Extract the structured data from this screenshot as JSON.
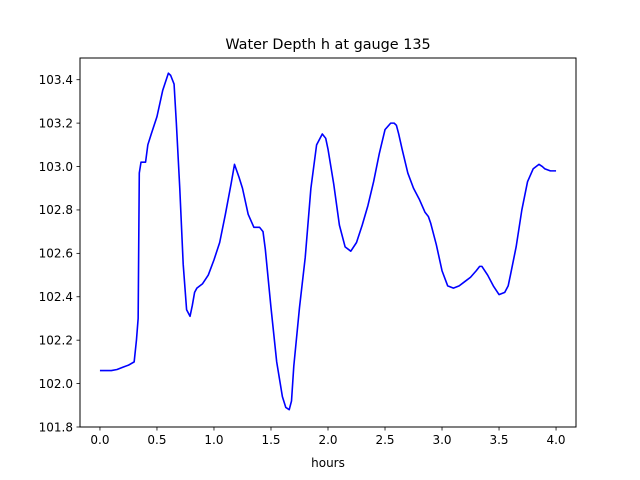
{
  "chart_data": {
    "type": "line",
    "title": "Water Depth h at gauge 135",
    "xlabel": "hours",
    "ylabel": "",
    "xlim": [
      -0.175,
      4.175
    ],
    "ylim": [
      101.8,
      103.5
    ],
    "x_ticks": [
      0.0,
      0.5,
      1.0,
      1.5,
      2.0,
      2.5,
      3.0,
      3.5,
      4.0
    ],
    "x_tick_labels": [
      "0.0",
      "0.5",
      "1.0",
      "1.5",
      "2.0",
      "2.5",
      "3.0",
      "3.5",
      "4.0"
    ],
    "y_ticks": [
      101.8,
      102.0,
      102.2,
      102.4,
      102.6,
      102.8,
      103.0,
      103.2,
      103.4
    ],
    "y_tick_labels": [
      "101.8",
      "102.0",
      "102.2",
      "102.4",
      "102.6",
      "102.8",
      "103.0",
      "103.2",
      "103.4"
    ],
    "grid": false,
    "colors": {
      "line": "#0000ff",
      "axes": "#000000"
    },
    "series": [
      {
        "x": [
          0.0,
          0.1,
          0.15,
          0.2,
          0.25,
          0.3,
          0.32,
          0.335,
          0.345,
          0.36,
          0.38,
          0.4,
          0.42,
          0.45,
          0.5,
          0.55,
          0.6,
          0.62,
          0.65,
          0.67,
          0.7,
          0.73,
          0.76,
          0.79,
          0.81,
          0.83,
          0.85,
          0.9,
          0.95,
          1.0,
          1.05,
          1.1,
          1.15,
          1.18,
          1.2,
          1.22,
          1.25,
          1.3,
          1.35,
          1.4,
          1.43,
          1.45,
          1.5,
          1.55,
          1.6,
          1.63,
          1.66,
          1.68,
          1.7,
          1.75,
          1.8,
          1.85,
          1.9,
          1.95,
          1.98,
          2.0,
          2.05,
          2.1,
          2.15,
          2.2,
          2.25,
          2.3,
          2.35,
          2.4,
          2.45,
          2.5,
          2.55,
          2.58,
          2.6,
          2.62,
          2.65,
          2.7,
          2.75,
          2.8,
          2.85,
          2.88,
          2.9,
          2.95,
          3.0,
          3.05,
          3.1,
          3.15,
          3.2,
          3.25,
          3.3,
          3.33,
          3.35,
          3.4,
          3.45,
          3.5,
          3.55,
          3.58,
          3.6,
          3.65,
          3.7,
          3.75,
          3.8,
          3.85,
          3.88,
          3.9,
          3.95,
          4.0
        ],
        "y": [
          102.06,
          102.06,
          102.065,
          102.075,
          102.085,
          102.1,
          102.2,
          102.3,
          102.97,
          103.02,
          103.02,
          103.02,
          103.1,
          103.15,
          103.23,
          103.35,
          103.43,
          103.42,
          103.38,
          103.2,
          102.9,
          102.55,
          102.34,
          102.31,
          102.36,
          102.42,
          102.44,
          102.46,
          102.5,
          102.57,
          102.65,
          102.78,
          102.92,
          103.01,
          102.98,
          102.95,
          102.9,
          102.78,
          102.72,
          102.72,
          102.7,
          102.62,
          102.35,
          102.1,
          101.94,
          101.89,
          101.88,
          101.92,
          102.08,
          102.35,
          102.58,
          102.9,
          103.1,
          103.15,
          103.13,
          103.08,
          102.92,
          102.73,
          102.63,
          102.61,
          102.65,
          102.73,
          102.82,
          102.93,
          103.06,
          103.17,
          103.2,
          103.2,
          103.19,
          103.15,
          103.08,
          102.97,
          102.9,
          102.85,
          102.79,
          102.77,
          102.74,
          102.64,
          102.52,
          102.45,
          102.44,
          102.45,
          102.47,
          102.49,
          102.52,
          102.54,
          102.54,
          102.5,
          102.45,
          102.41,
          102.42,
          102.45,
          102.5,
          102.63,
          102.8,
          102.93,
          102.99,
          103.01,
          103.0,
          102.99,
          102.98,
          102.98
        ]
      }
    ]
  }
}
